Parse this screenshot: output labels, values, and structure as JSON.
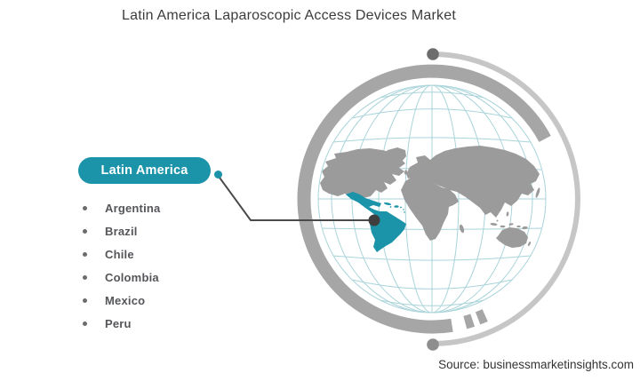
{
  "title": "Latin America Laparoscopic Access Devices Market",
  "region_callout": {
    "label": "Latin America",
    "countries": [
      "Argentina",
      "Brazil",
      "Chile",
      "Colombia",
      "Mexico",
      "Peru"
    ]
  },
  "map": {
    "type": "world-globe",
    "highlighted_region": "Latin America",
    "highlighted_areas": [
      "Mexico",
      "Central America",
      "Caribbean",
      "South America"
    ]
  },
  "source": "Source: businessmarketinsights.com",
  "icons": {
    "bullet": "small-gray-dot",
    "callout_connector": "teal-dot",
    "map_marker": "dark-dot"
  },
  "colors": {
    "accent_teal": "#1b93a9",
    "map_gray": "#9b9b9b",
    "ring_gray": "#a6a6a6",
    "ring_light_gray": "#c6c6c6",
    "graticule": "#a9d4da",
    "connector": "#4a4a4a",
    "text_dark": "#3c3c3c",
    "text_gray": "#55565a"
  }
}
